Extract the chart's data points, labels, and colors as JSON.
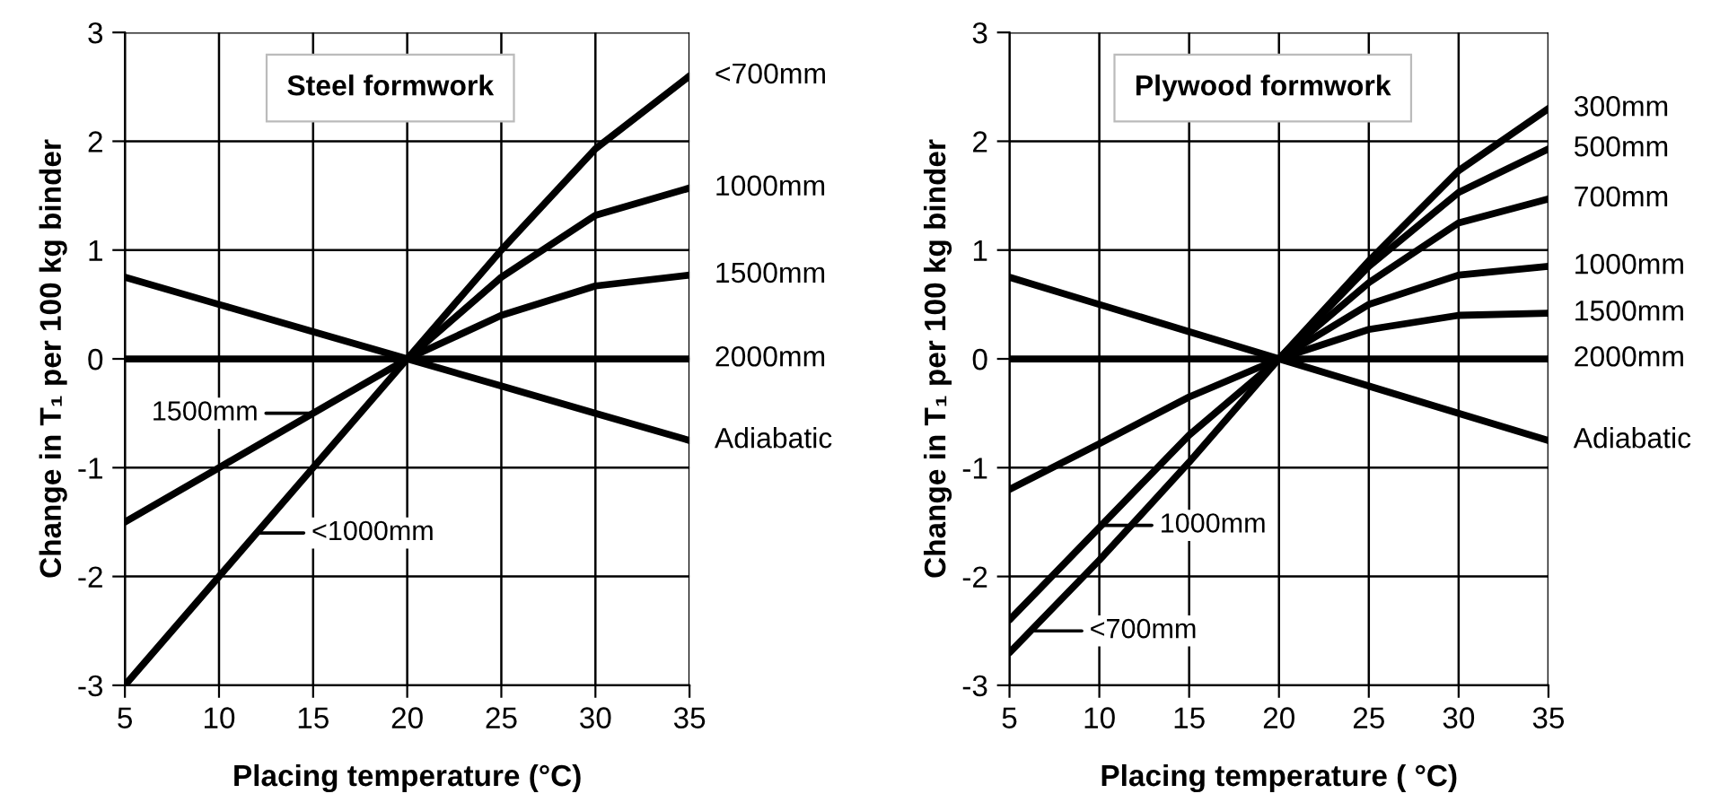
{
  "chart_data": [
    {
      "type": "line",
      "title": "Steel formwork",
      "xlabel": "Placing temperature (°C)",
      "ylabel": "Change in T₁ per 100 kg binder",
      "xlim": [
        5,
        35
      ],
      "ylim": [
        -3,
        3
      ],
      "xticks": [
        5,
        10,
        15,
        20,
        25,
        30,
        35
      ],
      "yticks": [
        -3,
        -2,
        -1,
        0,
        1,
        2,
        3
      ],
      "grid": true,
      "legend": false,
      "marker": "none",
      "line_style": "solid",
      "series": [
        {
          "name": "<700mm",
          "color": "#000000",
          "x": [
            5,
            10,
            15,
            20,
            25,
            30,
            35
          ],
          "values": [
            -3,
            -2,
            -1,
            0,
            1.0,
            1.93,
            2.6
          ]
        },
        {
          "name": "1000mm",
          "color": "#000000",
          "x": [
            20,
            25,
            30,
            35
          ],
          "values": [
            0,
            0.75,
            1.32,
            1.57
          ]
        },
        {
          "name": "1500mm",
          "color": "#000000",
          "x": [
            5,
            10,
            15,
            20,
            25,
            30,
            35
          ],
          "values": [
            -1.5,
            -1.0,
            -0.5,
            0,
            0.4,
            0.67,
            0.77
          ]
        },
        {
          "name": "2000mm",
          "color": "#000000",
          "x": [
            5,
            10,
            15,
            20,
            25,
            30,
            35
          ],
          "values": [
            0,
            0,
            0,
            0,
            0,
            0,
            0
          ]
        },
        {
          "name": "Adiabatic",
          "color": "#000000",
          "x": [
            5,
            10,
            15,
            20,
            25,
            30,
            35
          ],
          "values": [
            0.75,
            0.5,
            0.25,
            0,
            -0.25,
            -0.5,
            -0.75
          ]
        }
      ],
      "annotations": [
        {
          "text": "1500mm",
          "x": 15,
          "y": -0.5
        },
        {
          "text": "<1000mm",
          "x": 12,
          "y": -1.6
        }
      ]
    },
    {
      "type": "line",
      "title": "Plywood formwork",
      "xlabel": "Placing temperature ( °C)",
      "ylabel": "Change in T₁ per 100 kg binder",
      "xlim": [
        5,
        35
      ],
      "ylim": [
        -3,
        3
      ],
      "xticks": [
        5,
        10,
        15,
        20,
        25,
        30,
        35
      ],
      "yticks": [
        -3,
        -2,
        -1,
        0,
        1,
        2,
        3
      ],
      "grid": true,
      "legend": false,
      "marker": "none",
      "line_style": "solid",
      "series": [
        {
          "name": "300mm",
          "color": "#000000",
          "x": [
            5,
            10,
            15,
            20,
            25,
            30,
            35
          ],
          "values": [
            -2.7,
            -1.85,
            -0.95,
            0,
            0.9,
            1.73,
            2.3
          ]
        },
        {
          "name": "500mm",
          "color": "#000000",
          "x": [
            20,
            25,
            30,
            35
          ],
          "values": [
            0,
            0.85,
            1.53,
            1.93
          ]
        },
        {
          "name": "700mm",
          "color": "#000000",
          "x": [
            20,
            25,
            30,
            35
          ],
          "values": [
            0,
            0.7,
            1.25,
            1.47
          ]
        },
        {
          "name": "1000mm",
          "color": "#000000",
          "x": [
            5,
            10,
            15,
            20,
            25,
            30,
            35
          ],
          "values": [
            -2.4,
            -1.55,
            -0.7,
            0,
            0.5,
            0.77,
            0.85
          ]
        },
        {
          "name": "1500mm",
          "color": "#000000",
          "x": [
            5,
            10,
            15,
            20,
            25,
            30,
            35
          ],
          "values": [
            -1.2,
            -0.78,
            -0.35,
            0,
            0.27,
            0.4,
            0.42
          ]
        },
        {
          "name": "2000mm",
          "color": "#000000",
          "x": [
            5,
            10,
            15,
            20,
            25,
            30,
            35
          ],
          "values": [
            0,
            0,
            0,
            0,
            0,
            0,
            0
          ]
        },
        {
          "name": "Adiabatic",
          "color": "#000000",
          "x": [
            5,
            10,
            15,
            20,
            25,
            30,
            35
          ],
          "values": [
            0.75,
            0.5,
            0.25,
            0,
            -0.25,
            -0.5,
            -0.75
          ]
        }
      ],
      "annotations": [
        {
          "text": "1000mm",
          "x": 10.3,
          "y": -1.53
        },
        {
          "text": "<700mm",
          "x": 6.4,
          "y": -2.5
        }
      ]
    }
  ]
}
